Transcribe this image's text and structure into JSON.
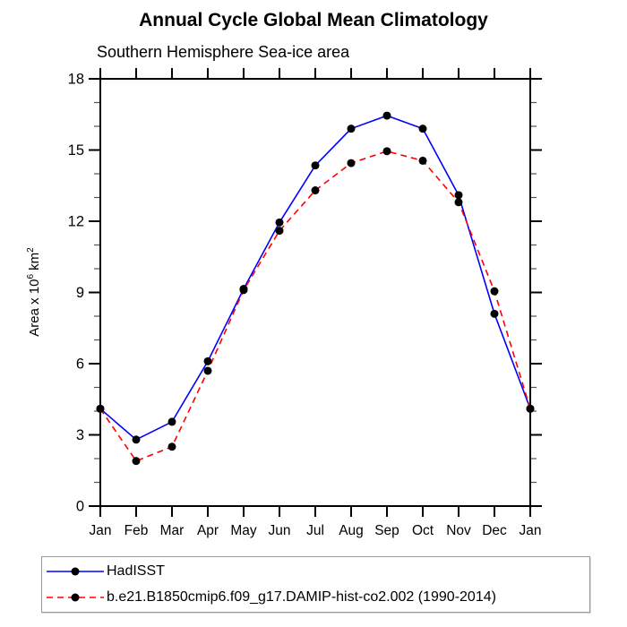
{
  "title": "Annual Cycle Global Mean Climatology",
  "subtitle": "Southern Hemisphere Sea-ice area",
  "y_axis": {
    "label_prefix": "Area x 10",
    "label_exp": "6",
    "label_unit": " km",
    "label_unit_exp": "2"
  },
  "colors": {
    "axis": "#000000",
    "minor_tick": "#555555",
    "marker": "#000000",
    "hadisst_line": "#0000ff",
    "model_line": "#ff0000",
    "legend_border": "#9a9a9a"
  },
  "chart_data": {
    "type": "line",
    "title": "Annual Cycle Global Mean Climatology",
    "subtitle": "Southern Hemisphere Sea-ice area",
    "xlabel": "",
    "ylabel": "Area x 10^6 km^2",
    "categories": [
      "Jan",
      "Feb",
      "Mar",
      "Apr",
      "May",
      "Jun",
      "Jul",
      "Aug",
      "Sep",
      "Oct",
      "Nov",
      "Dec",
      "Jan"
    ],
    "series": [
      {
        "name": "HadISST",
        "color": "#0000ff",
        "style": "solid",
        "marker": "circle",
        "values": [
          4.1,
          2.8,
          3.55,
          6.1,
          9.15,
          11.95,
          14.35,
          15.9,
          16.45,
          15.9,
          13.1,
          8.1,
          4.1
        ]
      },
      {
        "name": "b.e21.B1850cmip6.f09_g17.DAMIP-hist-co2.002 (1990-2014)",
        "color": "#ff0000",
        "style": "dashed",
        "marker": "circle",
        "values": [
          4.1,
          1.9,
          2.5,
          5.7,
          9.1,
          11.6,
          13.3,
          14.45,
          14.95,
          14.55,
          12.8,
          9.05,
          4.1
        ]
      }
    ],
    "ylim": [
      0,
      18
    ],
    "yticks": [
      0,
      3,
      6,
      9,
      12,
      15,
      18
    ],
    "minor_tick_interval": 1,
    "grid": false,
    "legend_position": "bottom-left"
  }
}
